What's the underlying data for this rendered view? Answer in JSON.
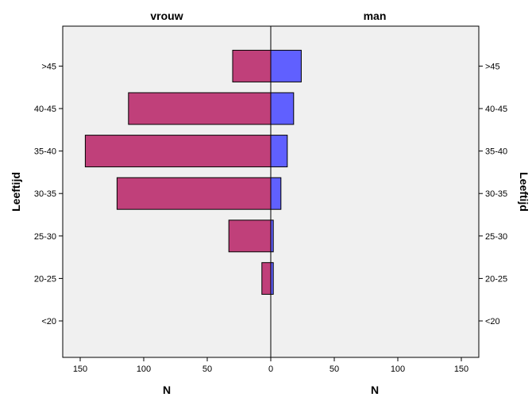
{
  "chart_data": {
    "type": "bar",
    "subtype": "population-pyramid",
    "categories": [
      "<20",
      "20-25",
      "25-30",
      "30-35",
      "35-40",
      "40-45",
      ">45"
    ],
    "series": [
      {
        "name": "vrouw",
        "values": [
          0,
          7,
          33,
          121,
          146,
          112,
          30
        ],
        "color": "#c0407a"
      },
      {
        "name": "man",
        "values": [
          0,
          2,
          2,
          8,
          13,
          18,
          24
        ],
        "color": "#6060ff"
      }
    ],
    "xlabel_left": "N",
    "xlabel_right": "N",
    "ylabel_left": "Leeftijd",
    "ylabel_right": "Leeftijd",
    "xlim": [
      0,
      165
    ],
    "xticks": [
      0,
      50,
      100,
      150
    ],
    "plot_background": "#f0f0f0",
    "bar_outline": "#000000"
  }
}
